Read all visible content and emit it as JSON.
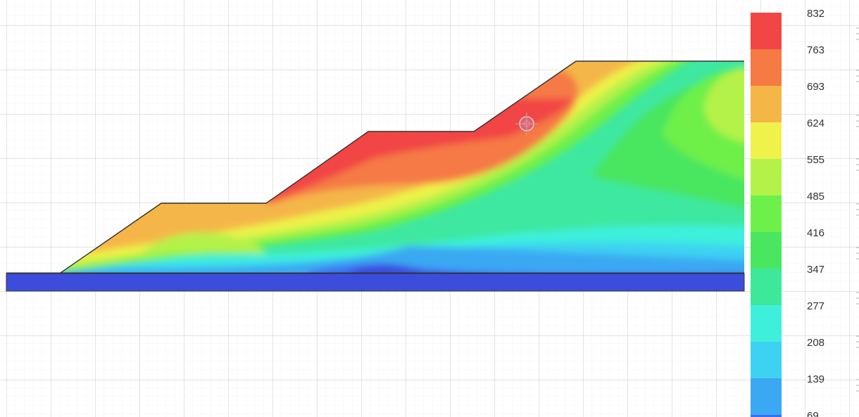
{
  "legend": {
    "labels": [
      "832",
      "763",
      "693",
      "624",
      "555",
      "485",
      "416",
      "347",
      "277",
      "208",
      "139",
      "69"
    ],
    "colors": [
      "#f24545",
      "#f57a44",
      "#f5b648",
      "#eef24a",
      "#b4f24a",
      "#6ef04a",
      "#49e660",
      "#3ee89a",
      "#3ef0dc",
      "#3ed2f2",
      "#3aa8f2",
      "#3a6ef2"
    ]
  },
  "colors": {
    "base_layer": "#3c4ddc",
    "grid_major": "#c9c9c9",
    "grid_minor": "#ececec",
    "outline": "#333333",
    "marker": "#f05a6a"
  },
  "icons": {
    "query_marker": "crosshair-icon"
  }
}
